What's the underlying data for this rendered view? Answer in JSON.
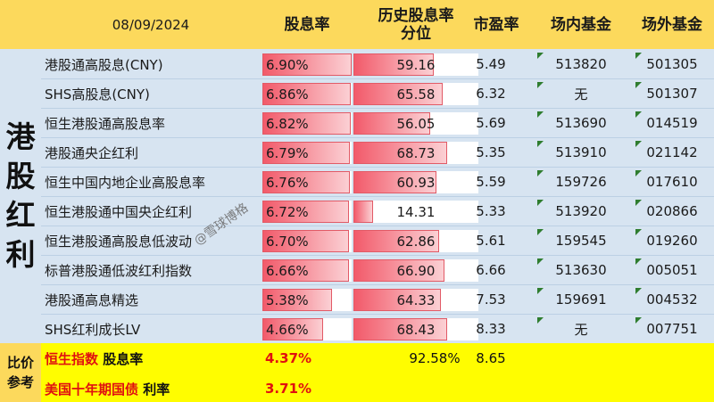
{
  "header": {
    "date": "08/09/2024",
    "col_yield": "股息率",
    "col_hist": "历史股息率\n分位",
    "col_pe": "市盈率",
    "col_fund_in": "场内基金",
    "col_fund_out": "场外基金"
  },
  "side_title": "港股红利",
  "rows": [
    {
      "name": "港股通高股息(CNY)",
      "yield": "6.90%",
      "yield_value": 6.9,
      "hist": "59.16",
      "hist_value": 59.16,
      "pe": "5.49",
      "fund_in": "513820",
      "fund_out": "501305"
    },
    {
      "name": "SHS高股息(CNY)",
      "yield": "6.86%",
      "yield_value": 6.86,
      "hist": "65.58",
      "hist_value": 65.58,
      "pe": "6.32",
      "fund_in": "无",
      "fund_out": "501307"
    },
    {
      "name": "恒生港股通高股息率",
      "yield": "6.82%",
      "yield_value": 6.82,
      "hist": "56.05",
      "hist_value": 56.05,
      "pe": "5.69",
      "fund_in": "513690",
      "fund_out": "014519"
    },
    {
      "name": "港股通央企红利",
      "yield": "6.79%",
      "yield_value": 6.79,
      "hist": "68.73",
      "hist_value": 68.73,
      "pe": "5.35",
      "fund_in": "513910",
      "fund_out": "021142"
    },
    {
      "name": "恒生中国内地企业高股息率",
      "yield": "6.76%",
      "yield_value": 6.76,
      "hist": "60.93",
      "hist_value": 60.93,
      "pe": "5.59",
      "fund_in": "159726",
      "fund_out": "017610"
    },
    {
      "name": "恒生港股通中国央企红利",
      "yield": "6.72%",
      "yield_value": 6.72,
      "hist": "14.31",
      "hist_value": 14.31,
      "pe": "5.33",
      "fund_in": "513920",
      "fund_out": "020866"
    },
    {
      "name": "恒生港股通高股息低波动",
      "yield": "6.70%",
      "yield_value": 6.7,
      "hist": "62.86",
      "hist_value": 62.86,
      "pe": "5.61",
      "fund_in": "159545",
      "fund_out": "019260"
    },
    {
      "name": "标普港股通低波红利指数",
      "yield": "6.66%",
      "yield_value": 6.66,
      "hist": "66.90",
      "hist_value": 66.9,
      "pe": "6.66",
      "fund_in": "513630",
      "fund_out": "005051"
    },
    {
      "name": "港股通高息精选",
      "yield": "5.38%",
      "yield_value": 5.38,
      "hist": "64.33",
      "hist_value": 64.33,
      "pe": "7.53",
      "fund_in": "159691",
      "fund_out": "004532"
    },
    {
      "name": "SHS红利成长LV",
      "yield": "4.66%",
      "yield_value": 4.66,
      "hist": "68.43",
      "hist_value": 68.43,
      "pe": "8.33",
      "fund_in": "无",
      "fund_out": "007751"
    }
  ],
  "bar_scale": {
    "yield_max": 6.9,
    "hist_max": 68.73
  },
  "bottom": {
    "label": "比价\n参考",
    "hsi_name": "恒生指数",
    "hsi_suffix": " 股息率",
    "hsi_yield": "4.37%",
    "hsi_hist": "92.58%",
    "hsi_pe": "8.65",
    "bond_name": "美国十年期国债",
    "bond_suffix": " 利率",
    "bond_rate": "3.71%"
  },
  "watermark": "@雪球博格",
  "colors": {
    "header": "#fcd95c",
    "body": "#d7e4f1",
    "bottom": "#fffd00",
    "bar": "#f25a6a",
    "accent_red": "#e01010"
  }
}
